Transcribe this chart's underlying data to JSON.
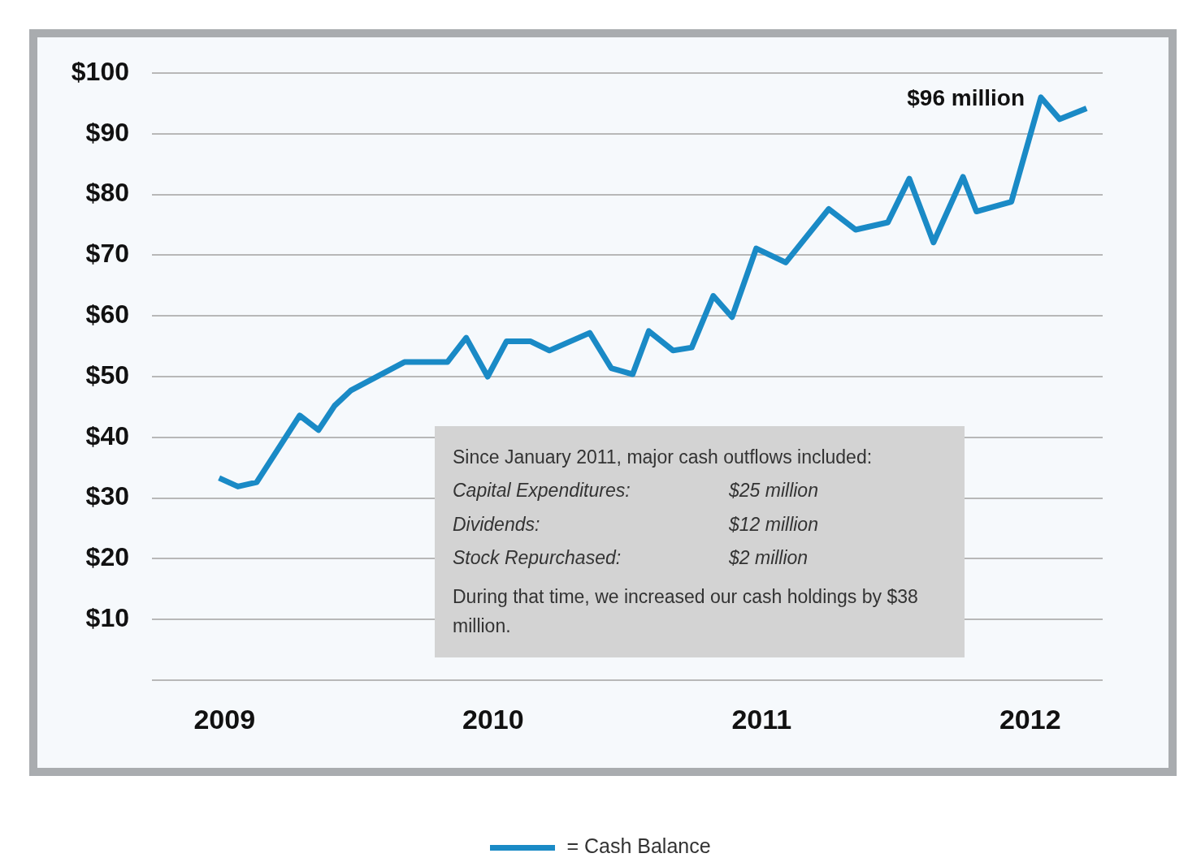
{
  "chart_data": {
    "type": "line",
    "x": [
      2008.98,
      2009.05,
      2009.12,
      2009.28,
      2009.35,
      2009.41,
      2009.47,
      2009.67,
      2009.83,
      2009.9,
      2009.98,
      2010.05,
      2010.14,
      2010.21,
      2010.36,
      2010.44,
      2010.52,
      2010.58,
      2010.67,
      2010.74,
      2010.82,
      2010.89,
      2010.98,
      2011.09,
      2011.25,
      2011.35,
      2011.47,
      2011.55,
      2011.64,
      2011.75,
      2011.8,
      2011.93,
      2012.04,
      2012.11,
      2012.21
    ],
    "series": [
      {
        "name": "= Cash Balance",
        "color": "#1a8ac6",
        "values": [
          33.3,
          31.9,
          32.6,
          43.6,
          41.2,
          45.2,
          47.7,
          52.4,
          52.4,
          56.4,
          50,
          55.8,
          55.8,
          54.3,
          57.2,
          51.4,
          50.4,
          57.5,
          54.3,
          54.8,
          63.3,
          59.8,
          71.1,
          68.8,
          77.6,
          74.2,
          75.4,
          82.6,
          72.1,
          82.9,
          77.2,
          78.8,
          96,
          92.4,
          94.2
        ]
      }
    ],
    "xlim": [
      2008.73,
      2012.27
    ],
    "xticks": [
      2009,
      2010,
      2011,
      2012
    ],
    "ylim": [
      0,
      100
    ],
    "yticks": [
      {
        "value": 0,
        "label": null
      },
      {
        "value": 10,
        "label": "$10"
      },
      {
        "value": 20,
        "label": "$20"
      },
      {
        "value": 30,
        "label": "$30"
      },
      {
        "value": 40,
        "label": "$40"
      },
      {
        "value": 50,
        "label": "$50"
      },
      {
        "value": 60,
        "label": "$60"
      },
      {
        "value": 70,
        "label": "$70"
      },
      {
        "value": 80,
        "label": "$80"
      },
      {
        "value": 90,
        "label": "$90"
      },
      {
        "value": 100,
        "label": "$100"
      }
    ],
    "grid": "y",
    "legend": "bottom",
    "marker": "none",
    "line_style": "solid",
    "annotations": [
      {
        "text": "$96 million",
        "x": 2012.04,
        "y": 96
      },
      "Since January 2011, major cash outflows included:",
      "Capital Expenditures:",
      "$25 million",
      "Dividends:",
      "$12 million",
      "Stock Repurchased:",
      "$2 million",
      "During that time, we increased our cash holdings by $38 million."
    ]
  }
}
